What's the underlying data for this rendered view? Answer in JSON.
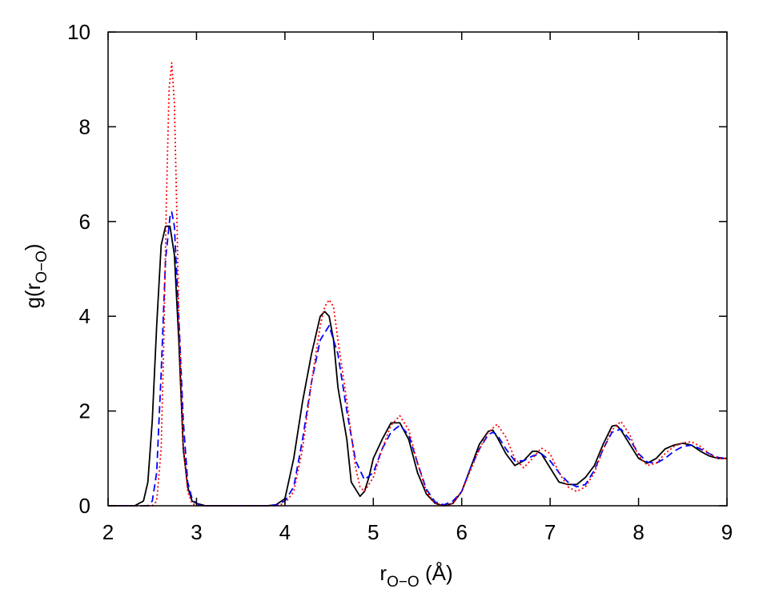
{
  "chart_data": {
    "type": "line",
    "xlabel": {
      "base": "r",
      "sub": "O−O",
      "unit": " (Å)"
    },
    "ylabel": {
      "base": "g(r",
      "sub": "O−O",
      "close": ")"
    },
    "xlim": [
      2,
      9
    ],
    "ylim": [
      0,
      10
    ],
    "xticks": [
      "2",
      "3",
      "4",
      "5",
      "6",
      "7",
      "8",
      "9"
    ],
    "yticks": [
      "0",
      "2",
      "4",
      "6",
      "8",
      "10"
    ],
    "grid": false,
    "legend": "none",
    "series": [
      {
        "color": "#000000",
        "style": "solid",
        "x": [
          2.0,
          2.3,
          2.4,
          2.45,
          2.5,
          2.55,
          2.6,
          2.65,
          2.7,
          2.75,
          2.8,
          2.85,
          2.9,
          2.95,
          3.0,
          3.1,
          3.2,
          3.8,
          3.9,
          4.0,
          4.1,
          4.2,
          4.3,
          4.4,
          4.45,
          4.5,
          4.55,
          4.6,
          4.7,
          4.75,
          4.8,
          4.85,
          4.9,
          4.95,
          5.0,
          5.1,
          5.2,
          5.3,
          5.4,
          5.5,
          5.6,
          5.7,
          5.8,
          5.9,
          6.0,
          6.1,
          6.2,
          6.3,
          6.35,
          6.4,
          6.5,
          6.6,
          6.7,
          6.8,
          6.85,
          6.9,
          7.0,
          7.1,
          7.2,
          7.3,
          7.4,
          7.5,
          7.6,
          7.7,
          7.75,
          7.8,
          7.9,
          8.0,
          8.1,
          8.2,
          8.3,
          8.4,
          8.5,
          8.6,
          8.7,
          8.8,
          8.9,
          9.0
        ],
        "y": [
          0.0,
          0.0,
          0.1,
          0.5,
          1.8,
          3.8,
          5.5,
          5.9,
          5.9,
          5.3,
          3.5,
          1.2,
          0.4,
          0.1,
          0.05,
          0.0,
          0.0,
          0.0,
          0.02,
          0.15,
          1.0,
          2.2,
          3.2,
          4.0,
          4.1,
          4.0,
          3.5,
          2.5,
          1.4,
          0.5,
          0.35,
          0.2,
          0.3,
          0.6,
          1.0,
          1.4,
          1.75,
          1.75,
          1.4,
          0.7,
          0.25,
          0.05,
          0.0,
          0.05,
          0.3,
          0.8,
          1.3,
          1.57,
          1.6,
          1.45,
          1.1,
          0.85,
          0.95,
          1.15,
          1.15,
          1.1,
          0.8,
          0.5,
          0.45,
          0.45,
          0.6,
          0.85,
          1.3,
          1.68,
          1.7,
          1.6,
          1.3,
          1.0,
          0.9,
          1.0,
          1.2,
          1.28,
          1.32,
          1.28,
          1.15,
          1.05,
          1.0,
          1.0
        ]
      },
      {
        "color": "#0000ff",
        "style": "dashed",
        "x": [
          2.0,
          2.45,
          2.5,
          2.55,
          2.6,
          2.65,
          2.7,
          2.72,
          2.75,
          2.8,
          2.85,
          2.9,
          2.95,
          3.0,
          3.05,
          3.2,
          3.8,
          3.9,
          4.0,
          4.1,
          4.2,
          4.3,
          4.4,
          4.5,
          4.6,
          4.7,
          4.8,
          4.9,
          5.0,
          5.1,
          5.2,
          5.3,
          5.4,
          5.5,
          5.6,
          5.7,
          5.8,
          5.9,
          6.0,
          6.1,
          6.2,
          6.3,
          6.35,
          6.4,
          6.5,
          6.6,
          6.7,
          6.8,
          6.9,
          7.0,
          7.1,
          7.2,
          7.3,
          7.4,
          7.5,
          7.6,
          7.7,
          7.8,
          7.9,
          8.0,
          8.1,
          8.2,
          8.3,
          8.4,
          8.5,
          8.6,
          8.7,
          8.8,
          8.9,
          9.0
        ],
        "y": [
          0.0,
          0.0,
          0.1,
          0.7,
          2.8,
          5.2,
          6.1,
          6.2,
          5.9,
          4.0,
          1.8,
          0.5,
          0.15,
          0.05,
          0.0,
          0.0,
          0.0,
          0.02,
          0.1,
          0.4,
          1.4,
          2.6,
          3.5,
          3.8,
          3.2,
          2.0,
          0.95,
          0.55,
          0.7,
          1.2,
          1.55,
          1.7,
          1.5,
          0.9,
          0.35,
          0.08,
          0.02,
          0.1,
          0.3,
          0.8,
          1.2,
          1.5,
          1.55,
          1.5,
          1.2,
          0.95,
          0.95,
          1.05,
          1.1,
          0.95,
          0.7,
          0.5,
          0.4,
          0.45,
          0.75,
          1.2,
          1.55,
          1.62,
          1.4,
          1.1,
          0.92,
          0.9,
          1.0,
          1.15,
          1.25,
          1.28,
          1.2,
          1.1,
          1.02,
          1.0
        ]
      },
      {
        "color": "#ff0000",
        "style": "dotted",
        "x": [
          2.0,
          2.5,
          2.55,
          2.6,
          2.63,
          2.66,
          2.69,
          2.72,
          2.75,
          2.78,
          2.8,
          2.85,
          2.9,
          2.95,
          3.0,
          3.1,
          3.8,
          3.9,
          4.0,
          4.1,
          4.2,
          4.3,
          4.4,
          4.45,
          4.5,
          4.55,
          4.6,
          4.7,
          4.8,
          4.85,
          4.9,
          5.0,
          5.1,
          5.2,
          5.3,
          5.4,
          5.5,
          5.6,
          5.7,
          5.8,
          5.9,
          6.0,
          6.1,
          6.2,
          6.3,
          6.4,
          6.5,
          6.6,
          6.7,
          6.8,
          6.9,
          7.0,
          7.1,
          7.2,
          7.3,
          7.4,
          7.5,
          7.6,
          7.7,
          7.8,
          7.9,
          8.0,
          8.1,
          8.2,
          8.3,
          8.4,
          8.5,
          8.6,
          8.7,
          8.8,
          8.9,
          9.0
        ],
        "y": [
          0.0,
          0.0,
          0.1,
          1.2,
          3.5,
          6.5,
          8.8,
          9.35,
          8.5,
          6.0,
          4.0,
          1.3,
          0.3,
          0.05,
          0.0,
          0.0,
          0.0,
          0.0,
          0.05,
          0.3,
          1.2,
          2.6,
          3.8,
          4.2,
          4.35,
          4.2,
          3.5,
          2.2,
          0.8,
          0.4,
          0.3,
          0.6,
          1.2,
          1.7,
          1.9,
          1.6,
          0.9,
          0.3,
          0.05,
          0.0,
          0.05,
          0.3,
          0.75,
          1.2,
          1.55,
          1.72,
          1.45,
          1.0,
          0.8,
          1.0,
          1.22,
          1.1,
          0.7,
          0.4,
          0.3,
          0.4,
          0.7,
          1.2,
          1.6,
          1.78,
          1.5,
          1.05,
          0.85,
          0.9,
          1.1,
          1.25,
          1.33,
          1.35,
          1.25,
          1.1,
          1.0,
          1.0
        ]
      }
    ]
  }
}
